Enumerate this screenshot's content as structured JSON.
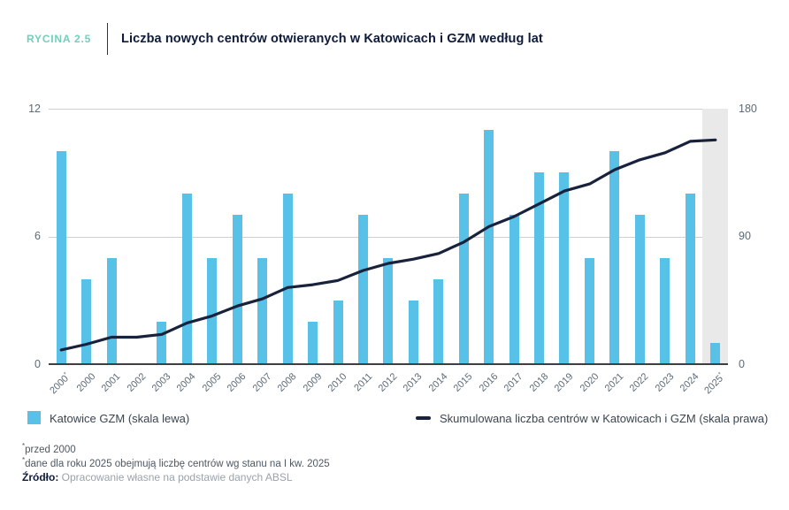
{
  "header": {
    "figure_label": "RYCINA 2.5",
    "title": "Liczba nowych centrów otwieranych w Katowicach i GZM według lat"
  },
  "chart_data": {
    "type": "bar",
    "categories": [
      "2000*",
      "2000",
      "2001",
      "2002",
      "2003",
      "2004",
      "2005",
      "2006",
      "2007",
      "2008",
      "2009",
      "2010",
      "2011",
      "2012",
      "2013",
      "2014",
      "2015",
      "2016",
      "2017",
      "2018",
      "2019",
      "2020",
      "2021",
      "2022",
      "2023",
      "2024",
      "2025*"
    ],
    "series": [
      {
        "name": "Katowice GZM (skala lewa)",
        "type": "bar",
        "axis": "left",
        "values": [
          10,
          4,
          5,
          0,
          2,
          8,
          5,
          7,
          5,
          8,
          2,
          3,
          7,
          5,
          3,
          4,
          8,
          11,
          7,
          9,
          9,
          5,
          10,
          7,
          5,
          8,
          1
        ]
      },
      {
        "name": "Skumulowana liczba centrów w Katowicach i GZM (skala prawa)",
        "type": "line",
        "axis": "right",
        "values": [
          10,
          14,
          19,
          19,
          21,
          29,
          34,
          41,
          46,
          54,
          56,
          59,
          66,
          71,
          74,
          78,
          86,
          97,
          104,
          113,
          122,
          127,
          137,
          144,
          149,
          157,
          158
        ]
      }
    ],
    "title": "Liczba nowych centrów otwieranych w Katowicach i GZM według lat",
    "xlabel": "",
    "ylabel_left": "",
    "ylabel_right": "",
    "left_axis": {
      "ticks": [
        "12",
        "6",
        "0"
      ],
      "min": 0,
      "max": 12
    },
    "right_axis": {
      "ticks": [
        "180",
        "90",
        "0"
      ],
      "min": 0,
      "max": 180
    },
    "grid": true,
    "legend_position": "bottom",
    "highlight_last_category": true
  },
  "legend": {
    "bar_label": "Katowice GZM (skala lewa)",
    "line_label": "Skumulowana liczba centrów w Katowicach i GZM (skala prawa)"
  },
  "footnotes": {
    "note1_marker": "*",
    "note1_text": "przed 2000",
    "note2_marker": "*",
    "note2_text": "dane dla roku 2025 obejmują liczbę centrów wg stanu na I kw. 2025",
    "source_label": "Źródło:",
    "source_text": "Opracowanie własne na podstawie danych ABSL"
  },
  "colors": {
    "bar": "#58C1E8",
    "line": "#18223C",
    "accent_teal": "#72CFBD",
    "title_navy": "#0F1B3A",
    "axis_text": "#5C6A76",
    "gridline": "#CFCFCF",
    "baseline": "#3F3F3F",
    "highlight_band": "#E9E9E9",
    "source_gray": "#9AA2AA"
  }
}
